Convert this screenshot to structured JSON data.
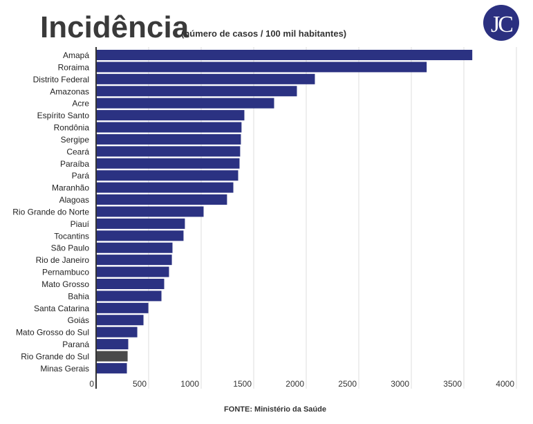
{
  "header": {
    "title": "Incidência",
    "subtitle": "(número de casos / 100 mil habitantes)"
  },
  "logo": {
    "text": "JC",
    "color": "#2b3080"
  },
  "footer": {
    "source": "FONTE: Ministério da Saúde"
  },
  "colors": {
    "bar": "#2b3282",
    "highlight": "#4a4a4a",
    "grid": "#dddddd"
  },
  "chart_data": {
    "type": "bar",
    "orientation": "horizontal",
    "title": "Incidência",
    "subtitle": "(número de casos / 100 mil habitantes)",
    "xlabel": "",
    "ylabel": "",
    "xlim": [
      0,
      4000
    ],
    "xticks": [
      "0",
      "500",
      "1000",
      "1500",
      "2000",
      "2500",
      "3000",
      "3500",
      "4000"
    ],
    "grid": true,
    "highlighted": "Rio Grande do Sul",
    "categories": [
      "Amapá",
      "Roraima",
      "Distrito Federal",
      "Amazonas",
      "Acre",
      "Espírito Santo",
      "Rondônia",
      "Sergipe",
      "Ceará",
      "Paraíba",
      "Pará",
      "Maranhão",
      "Alagoas",
      "Rio Grande do Norte",
      "Piauí",
      "Tocantins",
      "São Paulo",
      "Rio de Janeiro",
      "Pernambuco",
      "Mato Grosso",
      "Bahia",
      "Santa Catarina",
      "Goiás",
      "Mato Grosso do Sul",
      "Paraná",
      "Rio Grande do Sul",
      "Minas Gerais"
    ],
    "values": [
      3580,
      3146,
      2082,
      1911,
      1694,
      1411,
      1384,
      1378,
      1371,
      1365,
      1352,
      1306,
      1246,
      1023,
      845,
      832,
      727,
      721,
      694,
      648,
      622,
      497,
      451,
      392,
      306,
      300,
      293
    ]
  }
}
